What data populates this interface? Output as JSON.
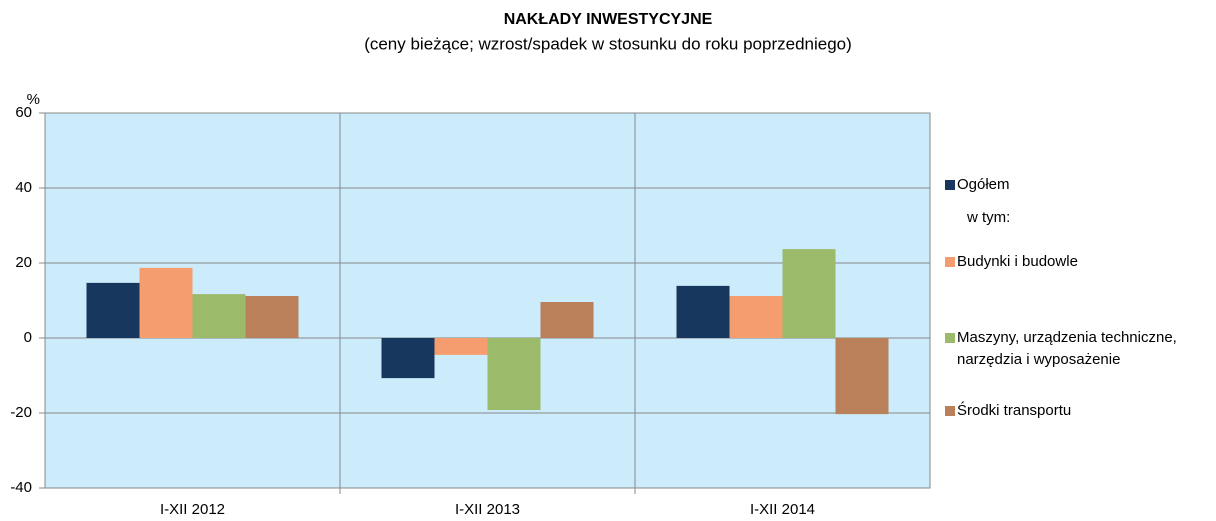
{
  "chart_data": {
    "type": "bar",
    "title": "NAKŁADY  INWESTYCYJNE",
    "subtitle": "(ceny bieżące; wzrost/spadek w stosunku do roku poprzedniego)",
    "y_label": "%",
    "legend_note": "w tym:",
    "categories": [
      "I-XII 2012",
      "I-XII 2013",
      "I-XII 2014"
    ],
    "series": [
      {
        "name": "Ogółem",
        "color": "#17375e",
        "values": [
          14.7,
          -10.7,
          13.9
        ]
      },
      {
        "name": "Budynki i budowle",
        "color": "#f59d6e",
        "values": [
          18.7,
          -4.5,
          11.2
        ]
      },
      {
        "name": "Maszyny, urządzenia techniczne, narzędzia i wyposażenie",
        "color": "#9bbb6a",
        "values": [
          11.7,
          -19.2,
          23.7
        ]
      },
      {
        "name": "Środki transportu",
        "color": "#b9805a",
        "values": [
          11.2,
          9.6,
          -20.3
        ]
      }
    ],
    "ylim": [
      -40,
      60
    ],
    "yticks": [
      -40,
      -20,
      0,
      20,
      40,
      60
    ],
    "grid": true,
    "legend": "right"
  }
}
